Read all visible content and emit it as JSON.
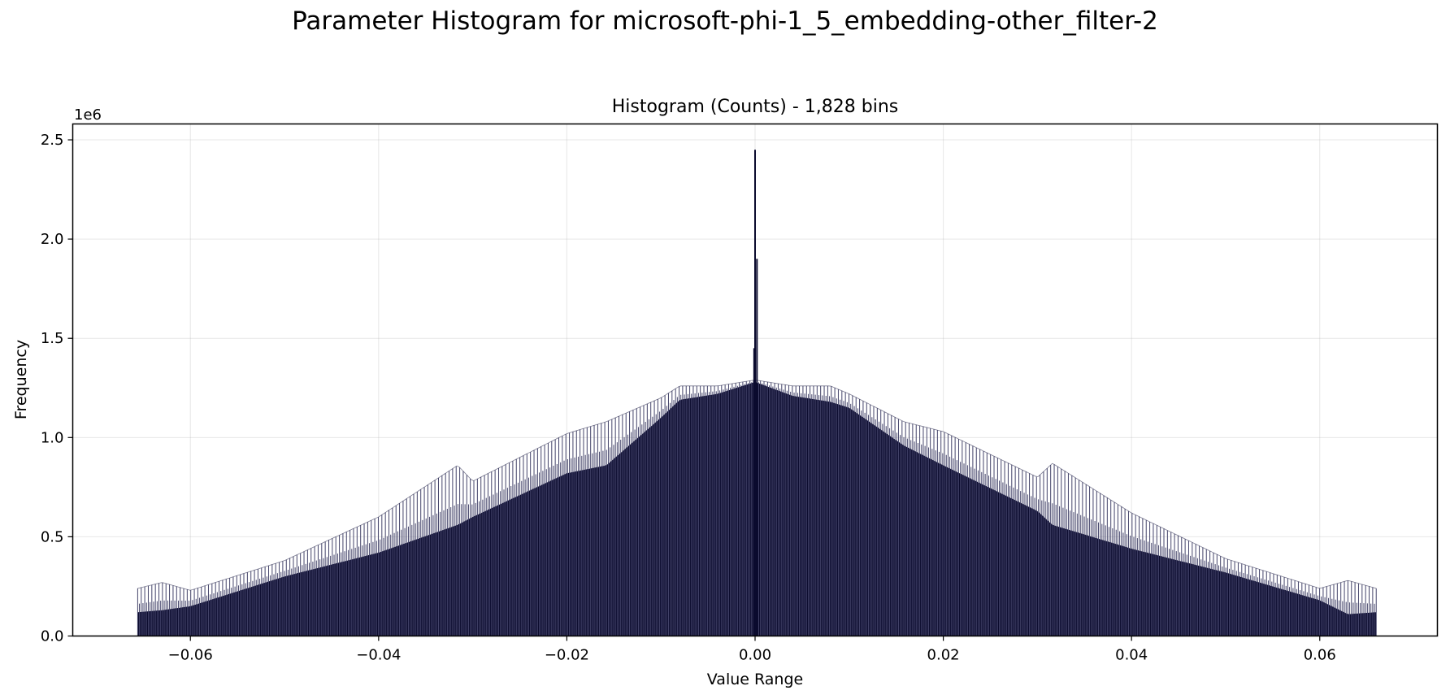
{
  "figure": {
    "suptitle": "Parameter Histogram for microsoft-phi-1_5_embedding-other_filter-2"
  },
  "chart_data": {
    "type": "bar",
    "title": "Histogram (Counts) - 1,828 bins",
    "xlabel": "Value Range",
    "ylabel": "Frequency",
    "y_offset_label": "1e6",
    "xlim": [
      -0.0725,
      0.0725
    ],
    "ylim": [
      0,
      2.58
    ],
    "y_unit": "millions",
    "grid": true,
    "n_bins": 1828,
    "bar_color": "#0b0b2e",
    "bar_edge_color": "#44446a",
    "x_ticks": [
      -0.06,
      -0.04,
      -0.02,
      0.0,
      0.02,
      0.04,
      0.06
    ],
    "x_tick_labels": [
      "−0.06",
      "−0.04",
      "−0.02",
      "0.00",
      "0.02",
      "0.04",
      "0.06"
    ],
    "y_ticks": [
      0.0,
      0.5,
      1.0,
      1.5,
      2.0,
      2.5
    ],
    "y_tick_labels": [
      "0.0",
      "0.5",
      "1.0",
      "1.5",
      "2.0",
      "2.5"
    ],
    "x_range": [
      -0.0656,
      0.066
    ],
    "envelope": {
      "x": [
        -0.0656,
        -0.063,
        -0.06,
        -0.05,
        -0.04,
        -0.0316,
        -0.03,
        -0.02,
        -0.0158,
        -0.01,
        -0.008,
        -0.004,
        0.0,
        0.004,
        0.008,
        0.01,
        0.0158,
        0.02,
        0.03,
        0.0316,
        0.04,
        0.05,
        0.06,
        0.063,
        0.066
      ],
      "upper": [
        0.24,
        0.27,
        0.23,
        0.38,
        0.6,
        0.86,
        0.78,
        1.02,
        1.08,
        1.2,
        1.26,
        1.26,
        1.29,
        1.26,
        1.26,
        1.22,
        1.08,
        1.03,
        0.8,
        0.87,
        0.62,
        0.39,
        0.24,
        0.28,
        0.24
      ],
      "lower": [
        0.12,
        0.13,
        0.15,
        0.3,
        0.42,
        0.56,
        0.6,
        0.82,
        0.86,
        1.1,
        1.19,
        1.22,
        1.28,
        1.21,
        1.18,
        1.15,
        0.96,
        0.86,
        0.63,
        0.56,
        0.44,
        0.32,
        0.18,
        0.11,
        0.12
      ]
    },
    "center_spikes": [
      {
        "x": 0.0,
        "value": 2.45
      },
      {
        "x": 0.0002,
        "value": 1.9
      },
      {
        "x": -0.0001,
        "value": 1.45
      }
    ]
  }
}
